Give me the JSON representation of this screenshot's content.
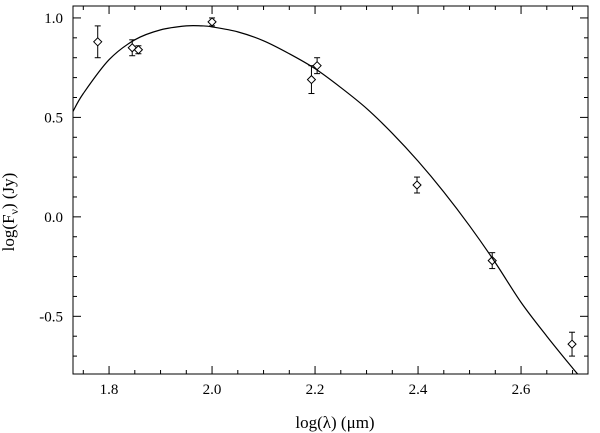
{
  "chart_data": {
    "type": "scatter",
    "xlabel": "log(λ) (μm)",
    "ylabel": "log(F_ν) (Jy)",
    "ylabel_parts": {
      "pre": "log(F",
      "sub": "ν",
      "post": ") (Jy)"
    },
    "xlim": [
      1.73,
      2.73
    ],
    "ylim": [
      -0.79,
      1.06
    ],
    "xticks": [
      1.8,
      2.0,
      2.2,
      2.4,
      2.6
    ],
    "xtick_labels": [
      "1.8",
      "2.0",
      "2.2",
      "2.4",
      "2.6"
    ],
    "xminor": 0.05,
    "yticks": [
      -0.5,
      0.0,
      0.5,
      1.0
    ],
    "ytick_labels": [
      "-0.5",
      "0.0",
      "0.5",
      "1.0"
    ],
    "yminor": 0.1,
    "grid": false,
    "series": [
      {
        "kind": "points_with_errorbars",
        "marker": "diamond",
        "x": [
          1.778,
          1.845,
          1.857,
          2.0,
          2.193,
          2.204,
          2.398,
          2.544,
          2.699
        ],
        "y": [
          0.88,
          0.85,
          0.84,
          0.98,
          0.69,
          0.76,
          0.16,
          -0.22,
          -0.64
        ],
        "yerr": [
          0.08,
          0.04,
          0.02,
          0.02,
          0.07,
          0.04,
          0.04,
          0.04,
          0.06
        ]
      },
      {
        "kind": "curve",
        "x": [
          1.73,
          1.75,
          1.8,
          1.85,
          1.9,
          1.95,
          1.98,
          2.0,
          2.05,
          2.1,
          2.15,
          2.2,
          2.25,
          2.3,
          2.35,
          2.4,
          2.45,
          2.5,
          2.55,
          2.6,
          2.65,
          2.7,
          2.71
        ],
        "y": [
          0.53,
          0.62,
          0.79,
          0.89,
          0.94,
          0.96,
          0.96,
          0.955,
          0.93,
          0.885,
          0.82,
          0.745,
          0.65,
          0.545,
          0.42,
          0.28,
          0.125,
          -0.045,
          -0.23,
          -0.43,
          -0.6,
          -0.76,
          -0.79
        ]
      }
    ]
  }
}
